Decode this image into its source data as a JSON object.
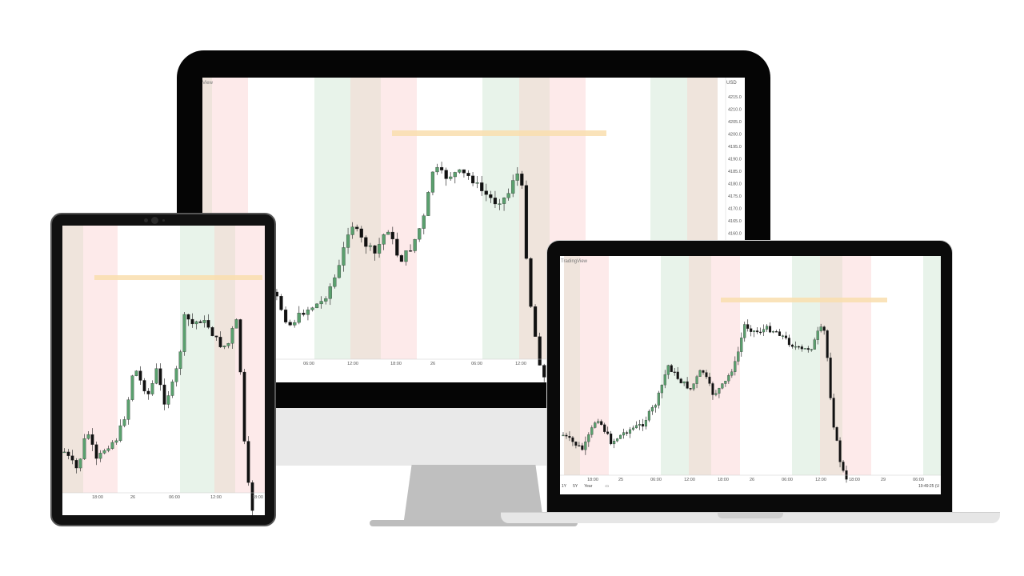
{
  "monitor": {
    "brand": "View",
    "currency": "USD",
    "price_labels": [
      "4215.0",
      "4210.0",
      "4205.0",
      "4200.0",
      "4195.0",
      "4190.0",
      "4185.0",
      "4180.0",
      "4175.0",
      "4170.0",
      "4165.0",
      "4160.0"
    ],
    "time_labels": [
      "06:00",
      "12:00",
      "18:00",
      "26",
      "06:00",
      "12:00"
    ]
  },
  "laptop": {
    "brand": "TradingView",
    "time_labels": [
      "18:00",
      "25",
      "06:00",
      "12:00",
      "18:00",
      "26",
      "06:00",
      "12:00",
      "18:00",
      "29",
      "06:00"
    ],
    "range_buttons": [
      "1Y",
      "5Y",
      "Year"
    ],
    "clock": "19:49:25 (U"
  },
  "tablet": {
    "time_labels": [
      "18:00",
      "26",
      "06:00",
      "12:00",
      "18:00"
    ]
  },
  "colors": {
    "session_green": "#e8f3ea",
    "session_brown": "#efe4dc",
    "session_red": "#fdeaea",
    "resistance_zone": "#f9deae",
    "up_candle": "#5aa06e",
    "down_candle": "#111111"
  }
}
